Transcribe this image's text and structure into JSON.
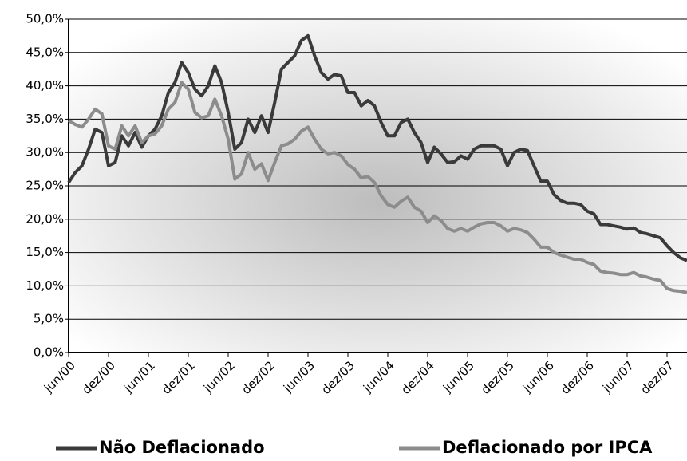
{
  "chart_data": {
    "type": "line",
    "categories": [
      "jun/00",
      null,
      null,
      null,
      null,
      null,
      "dez/00",
      null,
      null,
      null,
      null,
      null,
      "jun/01",
      null,
      null,
      null,
      null,
      null,
      "dez/01",
      null,
      null,
      null,
      null,
      null,
      "jun/02",
      null,
      null,
      null,
      null,
      null,
      "dez/02",
      null,
      null,
      null,
      null,
      null,
      "jun/03",
      null,
      null,
      null,
      null,
      null,
      "dez/03",
      null,
      null,
      null,
      null,
      null,
      "jun/04",
      null,
      null,
      null,
      null,
      null,
      "dez/04",
      null,
      null,
      null,
      null,
      null,
      "jun/05",
      null,
      null,
      null,
      null,
      null,
      "dez/05",
      null,
      null,
      null,
      null,
      null,
      "jun/06",
      null,
      null,
      null,
      null,
      null,
      "dez/06",
      null,
      null,
      null,
      null,
      null,
      "jun/07",
      null,
      null,
      null,
      null,
      null,
      "dez/07",
      null,
      null,
      null
    ],
    "series": [
      {
        "name": "Não Deflacionado",
        "color": "#3a3a3a",
        "values": [
          25.5,
          27,
          28,
          30.5,
          33.5,
          33,
          28,
          28.5,
          32.5,
          31,
          33,
          30.8,
          32.5,
          33.5,
          35.5,
          39,
          40.5,
          43.5,
          42,
          39.5,
          38.5,
          40,
          43,
          40.5,
          36,
          30.5,
          31.5,
          35,
          33,
          35.5,
          33,
          37.5,
          42.5,
          43.5,
          44.5,
          46.8,
          47.5,
          44.5,
          42,
          41,
          41.7,
          41.5,
          39,
          39,
          37,
          37.8,
          37,
          34.5,
          32.5,
          32.5,
          34.5,
          35,
          33,
          31.5,
          28.5,
          30.8,
          29.8,
          28.5,
          28.6,
          29.5,
          29,
          30.5,
          31,
          31,
          31,
          30.5,
          28,
          30,
          30.5,
          30.3,
          28,
          25.7,
          25.7,
          23.7,
          22.8,
          22.4,
          22.4,
          22.2,
          21.2,
          20.8,
          19.2,
          19.2,
          19,
          18.8,
          18.5,
          18.7,
          18,
          17.8,
          17.5,
          17.2,
          16,
          15,
          14.2,
          13.8
        ]
      },
      {
        "name": "Deflacionado por IPCA",
        "color": "#8c8c8c",
        "values": [
          34.8,
          34.2,
          33.8,
          35,
          36.5,
          35.8,
          31,
          30.5,
          34,
          32.5,
          34,
          31.5,
          32.5,
          32.8,
          34,
          36.5,
          37.5,
          40.5,
          39.5,
          36,
          35.2,
          35.5,
          38,
          35.5,
          32,
          26,
          26.8,
          30,
          27.5,
          28.3,
          25.8,
          28.5,
          31,
          31.3,
          32,
          33.2,
          33.8,
          32,
          30.5,
          29.8,
          30,
          29.5,
          28.2,
          27.5,
          26.2,
          26.4,
          25.5,
          23.5,
          22.2,
          21.8,
          22.7,
          23.3,
          21.8,
          21.2,
          19.5,
          20.5,
          19.8,
          18.6,
          18.2,
          18.6,
          18.2,
          18.8,
          19.3,
          19.5,
          19.5,
          19,
          18.2,
          18.6,
          18.4,
          18,
          17,
          15.8,
          15.8,
          15,
          14.6,
          14.3,
          14,
          14,
          13.5,
          13.2,
          12.2,
          12,
          11.9,
          11.7,
          11.7,
          12,
          11.5,
          11.3,
          11,
          10.8,
          9.6,
          9.3,
          9.2,
          9.0
        ]
      }
    ],
    "ylim": [
      0,
      50
    ],
    "yticks": [
      {
        "value": 0,
        "label": "0,0%"
      },
      {
        "value": 5,
        "label": "5,0%"
      },
      {
        "value": 10,
        "label": "10,0%"
      },
      {
        "value": 15,
        "label": "15,0%"
      },
      {
        "value": 20,
        "label": "20,0%"
      },
      {
        "value": 25,
        "label": "25,0%"
      },
      {
        "value": 30,
        "label": "30,0%"
      },
      {
        "value": 35,
        "label": "35,0%"
      },
      {
        "value": 40,
        "label": "40,0%"
      },
      {
        "value": 45,
        "label": "45,0%"
      },
      {
        "value": 50,
        "label": "50,0%"
      }
    ],
    "grid": true,
    "legend": "bottom"
  }
}
